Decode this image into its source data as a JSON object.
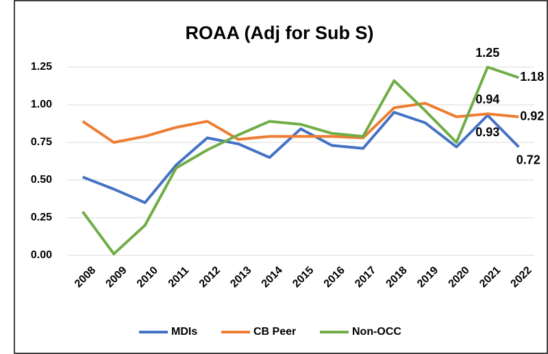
{
  "chart_data": {
    "type": "line",
    "title": "ROAA (Adj for Sub S)",
    "categories": [
      "2008",
      "2009",
      "2010",
      "2011",
      "2012",
      "2013",
      "2014",
      "2015",
      "2016",
      "2017",
      "2018",
      "2019",
      "2020",
      "2021",
      "2022"
    ],
    "series": [
      {
        "name": "MDIs",
        "color": "#4472c4",
        "values": [
          0.52,
          0.44,
          0.35,
          0.6,
          0.78,
          0.74,
          0.65,
          0.84,
          0.73,
          0.71,
          0.95,
          0.88,
          0.72,
          0.93,
          0.72
        ],
        "value_labels": [
          null,
          null,
          null,
          null,
          null,
          null,
          null,
          null,
          null,
          null,
          null,
          null,
          null,
          "0.93",
          "0.72"
        ]
      },
      {
        "name": "CB Peer",
        "color": "#ed7d31",
        "values": [
          0.89,
          0.75,
          0.79,
          0.85,
          0.89,
          0.77,
          0.79,
          0.79,
          0.79,
          0.78,
          0.98,
          1.01,
          0.92,
          0.94,
          0.92
        ],
        "value_labels": [
          null,
          null,
          null,
          null,
          null,
          null,
          null,
          null,
          null,
          null,
          null,
          null,
          null,
          "0.94",
          "0.92"
        ]
      },
      {
        "name": "Non-OCC",
        "color": "#70ad47",
        "values": [
          0.29,
          0.01,
          0.2,
          0.58,
          0.7,
          0.8,
          0.89,
          0.87,
          0.81,
          0.79,
          1.16,
          0.96,
          0.75,
          1.25,
          1.18
        ],
        "value_labels": [
          null,
          null,
          null,
          null,
          null,
          null,
          null,
          null,
          null,
          null,
          null,
          null,
          null,
          "1.25",
          "1.18"
        ]
      }
    ],
    "ylim": [
      0,
      1.25
    ],
    "yticks": [
      {
        "value": 0,
        "label": "0.00"
      },
      0.25,
      {
        "value": 0.5,
        "label": "0.50"
      },
      0.75,
      {
        "value": 1,
        "label": "1.00"
      },
      1.25
    ],
    "grid": true,
    "legend": "bottom"
  }
}
